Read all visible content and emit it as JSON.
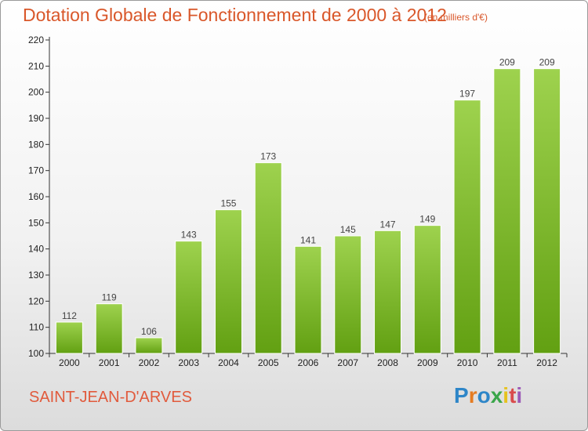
{
  "header": {
    "title": "Dotation Globale de Fonctionnement de 2000 à 2012",
    "subtitle": "(en milliers d'€)"
  },
  "footer": {
    "commune": "SAINT-JEAN-D'ARVES",
    "brand_letters": [
      {
        "ch": "P",
        "color": "#2e86c8"
      },
      {
        "ch": "r",
        "color": "#e57c22"
      },
      {
        "ch": "o",
        "color": "#2e86c8"
      },
      {
        "ch": "x",
        "color": "#3aa64a"
      },
      {
        "ch": "i",
        "color": "#e6c21f"
      },
      {
        "ch": "t",
        "color": "#d94c4c"
      },
      {
        "ch": "i",
        "color": "#9b59b6"
      }
    ]
  },
  "colors": {
    "bar_top": "#9ed24e",
    "bar_bottom": "#62a012",
    "axis": "#333333",
    "grid_tick": "#333333"
  },
  "chart_data": {
    "type": "bar",
    "title": "Dotation Globale de Fonctionnement de 2000 à 2012",
    "subtitle": "(en milliers d'€)",
    "categories": [
      "2000",
      "2001",
      "2002",
      "2003",
      "2004",
      "2005",
      "2006",
      "2007",
      "2008",
      "2009",
      "2010",
      "2011",
      "2012"
    ],
    "values": [
      112,
      119,
      106,
      143,
      155,
      173,
      141,
      145,
      147,
      149,
      197,
      209,
      209
    ],
    "ylim": [
      100,
      220
    ],
    "yticks": [
      100,
      110,
      120,
      130,
      140,
      150,
      160,
      170,
      180,
      190,
      200,
      210,
      220
    ],
    "grid": false,
    "data_labels": true
  }
}
